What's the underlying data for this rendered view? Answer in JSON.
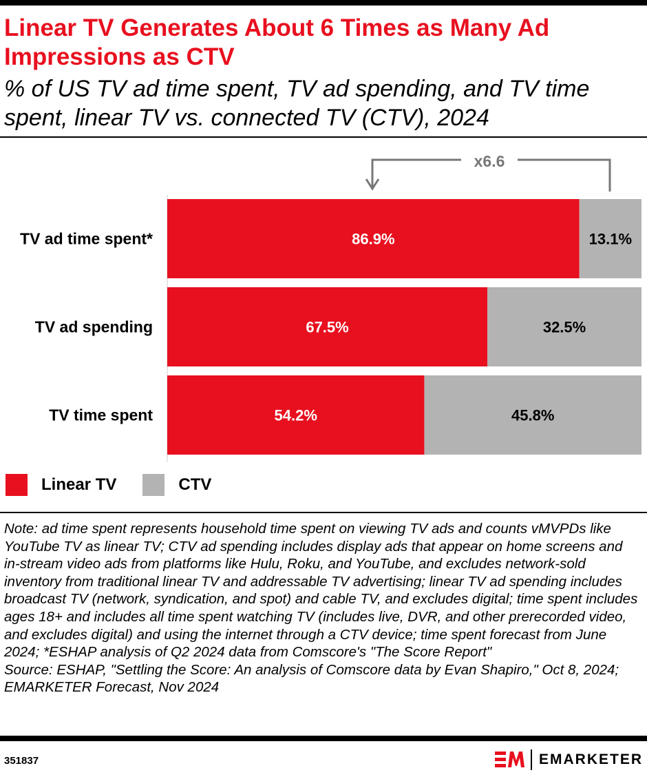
{
  "title": "Linear TV Generates About 6 Times as Many Ad Impressions as CTV",
  "subtitle": "% of US TV ad time spent, TV ad spending, and TV time spent, linear TV vs. connected TV (CTV), 2024",
  "chart_data": {
    "type": "bar",
    "orientation": "horizontal-stacked-100",
    "categories": [
      "TV ad time spent*",
      "TV ad spending",
      "TV time spent"
    ],
    "series": [
      {
        "name": "Linear TV",
        "values": [
          86.9,
          67.5,
          54.2
        ],
        "labels": [
          "86.9%",
          "67.5%",
          "54.2%"
        ],
        "color": "#e8101f"
      },
      {
        "name": "CTV",
        "values": [
          13.1,
          32.5,
          45.8
        ],
        "labels": [
          "13.1%",
          "32.5%",
          "45.8%"
        ],
        "color": "#b3b3b3"
      }
    ],
    "annotation": "x6.6",
    "xlim": [
      0,
      100
    ]
  },
  "notes": "Note: ad time spent represents household time spent on viewing TV ads and counts vMVPDs like YouTube TV as linear TV; CTV ad spending includes display ads that appear on home screens and in-stream video ads from platforms like Hulu, Roku, and YouTube, and excludes network-sold inventory from traditional linear TV and addressable TV advertising; linear TV ad spending includes broadcast TV (network, syndication, and spot) and cable TV, and excludes digital; time spent includes ages 18+ and includes all time spent watching TV (includes live, DVR, and other prerecorded video, and excludes digital) and using the internet through a CTV device; time spent forecast from June 2024; *ESHAP analysis of Q2 2024 data from Comscore's \"The Score Report\"",
  "source": "Source: ESHAP, \"Settling the Score: An analysis of Comscore data by Evan Shapiro,\" Oct 8, 2024; EMARKETER Forecast, Nov 2024",
  "footer": {
    "chart_id": "351837",
    "brand": "EMARKETER",
    "logo_text": "EM"
  }
}
